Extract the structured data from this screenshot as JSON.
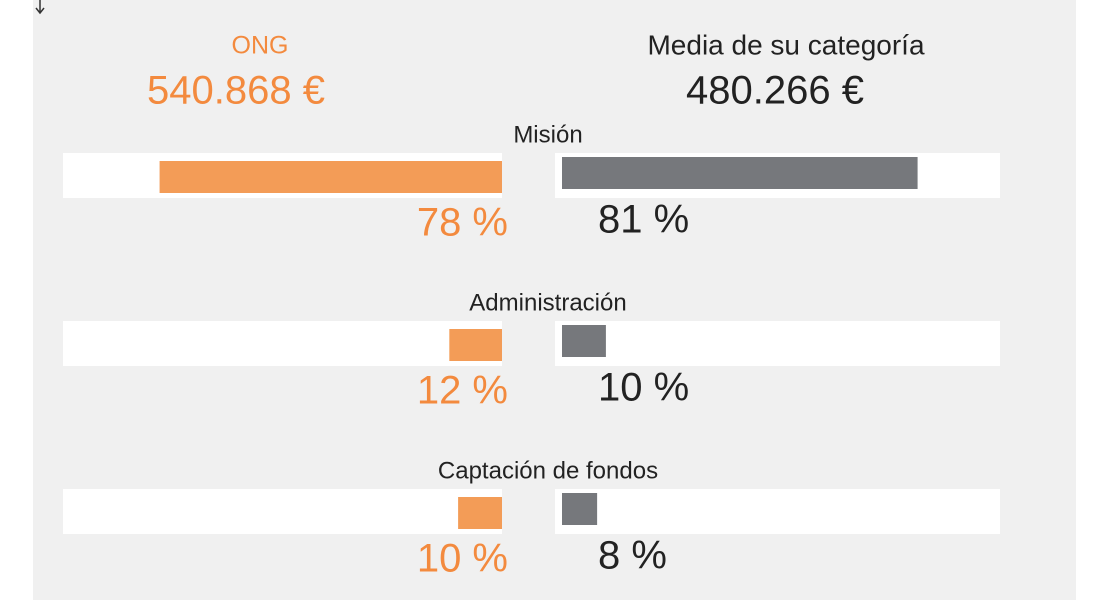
{
  "chart_data": {
    "type": "butterfly",
    "categories": [
      "Misión",
      "Administración",
      "Captación de fondos"
    ],
    "series": [
      {
        "name": "ONG",
        "total": "540.868 €",
        "color": "#f39c57",
        "values": [
          78,
          12,
          10
        ],
        "value_labels": [
          "78 %",
          "12 %",
          "10 %"
        ]
      },
      {
        "name": "Media de su categoría",
        "total": "480.266 €",
        "color": "#76787c",
        "values": [
          81,
          10,
          8
        ],
        "value_labels": [
          "81 %",
          "10 %",
          "8 %"
        ]
      }
    ],
    "xlim": [
      0,
      100
    ]
  }
}
